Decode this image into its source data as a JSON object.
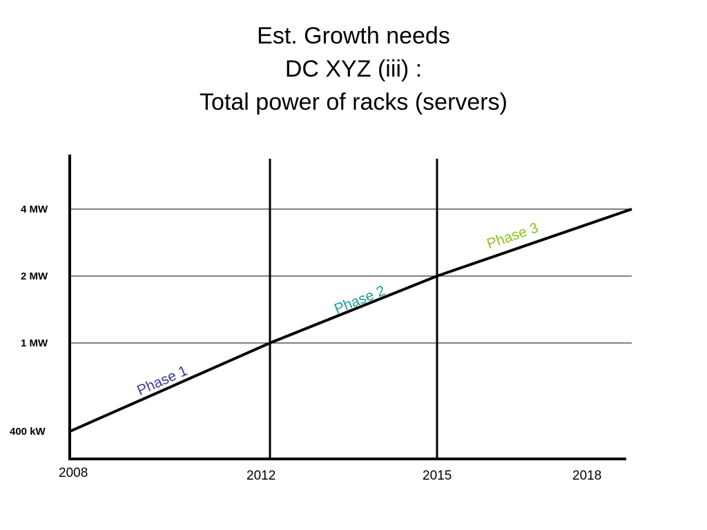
{
  "title_lines": [
    "Est. Growth needs",
    "DC XYZ (iii) :",
    "Total power of racks (servers)"
  ],
  "chart_data": {
    "type": "line",
    "title": "Est. Growth needs DC XYZ (iii) : Total power of racks (servers)",
    "xlabel": "",
    "ylabel": "",
    "x_ticks": [
      {
        "value": 2008,
        "label": "2008"
      },
      {
        "value": 2012,
        "label": "2012"
      },
      {
        "value": 2015,
        "label": "2015"
      },
      {
        "value": 2018,
        "label": "2018"
      }
    ],
    "y_ticks": [
      {
        "value": 400,
        "label": "400 kW"
      },
      {
        "value": 1000,
        "label": "1 MW"
      },
      {
        "value": 2000,
        "label": "2 MW"
      },
      {
        "value": 4000,
        "label": "4 MW"
      }
    ],
    "y_unit": "kW",
    "y_scale": "log",
    "series": [
      {
        "x": [
          2008,
          2012,
          2015,
          2018
        ],
        "y": [
          400,
          1000,
          2000,
          4000
        ],
        "color": "#000000"
      }
    ],
    "annotations": [
      {
        "text": "Phase 1",
        "x": 2009.4,
        "y": 580,
        "color": "#3a3a9a"
      },
      {
        "text": "Phase 2",
        "x": 2013.2,
        "y": 1350,
        "color": "#1f9a9a"
      },
      {
        "text": "Phase 3",
        "x": 2015.8,
        "y": 2650,
        "color": "#8cc21e"
      }
    ],
    "grid": {
      "vertical_at": [
        2012,
        2015
      ],
      "horizontal_at": [
        1000,
        2000,
        4000
      ]
    }
  }
}
